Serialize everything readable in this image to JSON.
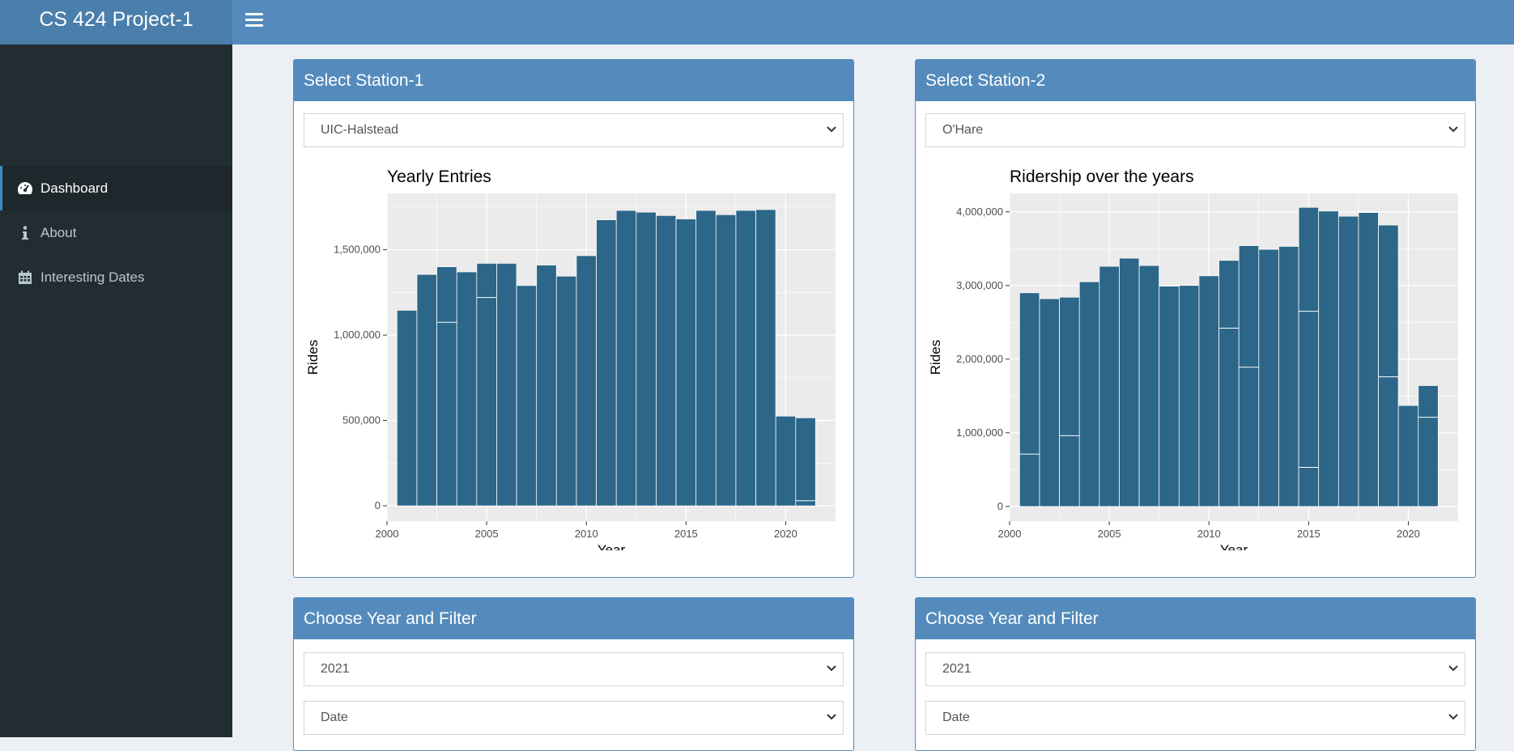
{
  "app": {
    "title": "CS 424 Project-1"
  },
  "sidebar": {
    "items": [
      {
        "label": "Dashboard",
        "icon": "dashboard-icon",
        "active": true
      },
      {
        "label": "About",
        "icon": "info-icon",
        "active": false
      },
      {
        "label": "Interesting Dates",
        "icon": "calendar-icon",
        "active": false
      }
    ]
  },
  "panels": {
    "station1": {
      "title": "Select Station-1",
      "selected": "UIC-Halstead"
    },
    "station2": {
      "title": "Select Station-2",
      "selected": "O'Hare"
    },
    "filter1": {
      "title": "Choose Year and Filter",
      "year": "2021",
      "filter": "Date"
    },
    "filter2": {
      "title": "Choose Year and Filter",
      "year": "2021",
      "filter": "Date"
    }
  },
  "colors": {
    "bar": "#2c6689",
    "header": "#548bbc",
    "sidebar": "#222d32",
    "panel_bg": "#ebebeb"
  },
  "chart_data": [
    {
      "type": "bar",
      "title": "Yearly Entries",
      "xlabel": "Year",
      "ylabel": "Rides",
      "x": [
        2001,
        2002,
        2003,
        2004,
        2005,
        2006,
        2007,
        2008,
        2009,
        2010,
        2011,
        2012,
        2013,
        2014,
        2015,
        2016,
        2017,
        2018,
        2019,
        2020,
        2021
      ],
      "values": [
        1145000,
        1355000,
        1400000,
        1370000,
        1420000,
        1420000,
        1290000,
        1410000,
        1345000,
        1465000,
        1675000,
        1730000,
        1720000,
        1700000,
        1680000,
        1730000,
        1705000,
        1730000,
        1735000,
        525000,
        515000
      ],
      "segment_lines": [
        null,
        null,
        1075000,
        null,
        1220000,
        null,
        null,
        null,
        null,
        null,
        null,
        null,
        null,
        null,
        null,
        null,
        null,
        null,
        null,
        null,
        30000
      ],
      "xlim": [
        2000,
        2022.5
      ],
      "ylim": [
        -90000,
        1830000
      ],
      "xticks": [
        2000,
        2005,
        2010,
        2015,
        2020
      ],
      "yticks": [
        0,
        500000,
        1000000,
        1500000
      ],
      "ytick_labels": [
        "0",
        "500,000",
        "1,000,000",
        "1,500,000"
      ]
    },
    {
      "type": "bar",
      "title": "Ridership over the years",
      "xlabel": "Year",
      "ylabel": "Rides",
      "x": [
        2001,
        2002,
        2003,
        2004,
        2005,
        2006,
        2007,
        2008,
        2009,
        2010,
        2011,
        2012,
        2013,
        2014,
        2015,
        2016,
        2017,
        2018,
        2019,
        2020,
        2021
      ],
      "values": [
        2900000,
        2820000,
        2840000,
        3050000,
        3260000,
        3370000,
        3270000,
        2990000,
        3000000,
        3130000,
        3340000,
        3540000,
        3490000,
        3530000,
        4060000,
        4010000,
        3940000,
        3990000,
        3820000,
        1370000,
        1640000
      ],
      "segment_lines": [
        710000,
        null,
        960000,
        null,
        null,
        null,
        null,
        null,
        null,
        null,
        2420000,
        1890000,
        null,
        null,
        2650000,
        null,
        null,
        null,
        1760000,
        null,
        1210000
      ],
      "segment_lines_extra": [
        null,
        null,
        null,
        null,
        null,
        null,
        null,
        null,
        null,
        null,
        null,
        null,
        null,
        null,
        530000,
        null,
        null,
        null,
        null,
        null,
        null
      ],
      "xlim": [
        2000,
        2022.5
      ],
      "ylim": [
        -200000,
        4250000
      ],
      "xticks": [
        2000,
        2005,
        2010,
        2015,
        2020
      ],
      "yticks": [
        0,
        1000000,
        2000000,
        3000000,
        4000000
      ],
      "ytick_labels": [
        "0",
        "1,000,000",
        "2,000,000",
        "3,000,000",
        "4,000,000"
      ]
    }
  ]
}
